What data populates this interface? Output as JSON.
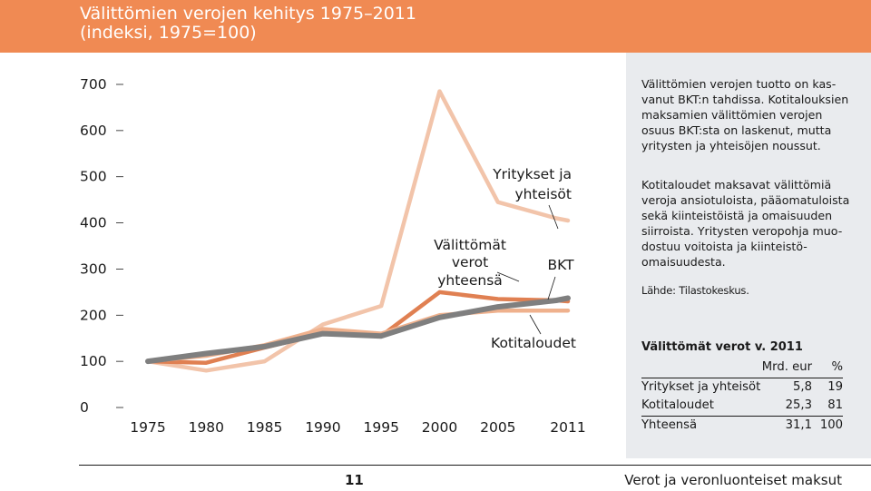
{
  "header": {
    "title_line1": "Välittömien verojen kehitys 1975–2011",
    "title_line2": "(indeksi, 1975=100)"
  },
  "chart_data": {
    "type": "line",
    "title": "Välittömien verojen kehitys 1975–2011 (indeksi, 1975=100)",
    "x": [
      1975,
      1980,
      1985,
      1990,
      1995,
      2000,
      2005,
      2010,
      2011
    ],
    "x_ticks": [
      1975,
      1980,
      1985,
      1990,
      1995,
      2000,
      2005,
      2011
    ],
    "y_ticks": [
      0,
      100,
      200,
      300,
      400,
      500,
      600,
      700
    ],
    "ylim": [
      0,
      700
    ],
    "xlim": [
      1975,
      2011
    ],
    "series": [
      {
        "name": "Yritykset ja yhteisöt",
        "color": "#f2c4aa",
        "x": [
          1975,
          1980,
          1985,
          1990,
          1995,
          2000,
          2005,
          2010,
          2011
        ],
        "values": [
          100,
          80,
          100,
          180,
          220,
          685,
          445,
          410,
          405
        ]
      },
      {
        "name": "Välittömät verot yhteensä",
        "color": "#e08052",
        "x": [
          1975,
          1980,
          1985,
          1990,
          1995,
          2000,
          2005,
          2010,
          2011
        ],
        "values": [
          100,
          97,
          130,
          160,
          155,
          250,
          235,
          232,
          230
        ]
      },
      {
        "name": "Kotitaloudet",
        "color": "#efb18d",
        "x": [
          1975,
          1980,
          1985,
          1990,
          1995,
          2000,
          2005,
          2010,
          2011
        ],
        "values": [
          100,
          112,
          135,
          170,
          160,
          200,
          210,
          210,
          210
        ]
      },
      {
        "name": "BKT",
        "color": "#7f7f7f",
        "x": [
          1975,
          1980,
          1985,
          1990,
          1995,
          2000,
          2005,
          2010,
          2011
        ],
        "values": [
          100,
          117,
          132,
          160,
          155,
          195,
          218,
          232,
          237
        ]
      }
    ],
    "annotations": [
      "Yritykset ja yhteisöt",
      "Välittömät verot yhteensä",
      "BKT",
      "Kotitaloudet"
    ]
  },
  "labels": {
    "yritykset_1": "Yritykset ja",
    "yritykset_2": "yhteisöt",
    "valittomat_1": "Välittömät",
    "valittomat_2": "verot",
    "valittomat_3": "yhteensä",
    "bkt": "BKT",
    "kotitaloudet": "Kotitaloudet"
  },
  "panel": {
    "para1": [
      "Välittömien verojen tuotto on kas-",
      "vanut BKT:n tahdissa. Kotitalouksien",
      "maksamien välittömien verojen",
      "osuus BKT:sta on laskenut, mutta",
      "yritysten ja yhteisöjen noussut."
    ],
    "para2": [
      "Kotitaloudet maksavat välittömiä",
      "veroja ansiotuloista, pääomatuloista",
      "sekä kiinteistöistä ja omaisuuden",
      "siirroista. Yritysten veropohja muo-",
      "dostuu voitoista ja kiinteistö-",
      "omaisuudesta."
    ],
    "source": "Lähde: Tilastokeskus.",
    "table": {
      "title": "Välittömät verot v. 2011",
      "head": [
        "",
        "Mrd. eur",
        "%"
      ],
      "rows": [
        [
          "Yritykset ja yhteisöt",
          "5,8",
          "19"
        ],
        [
          "Kotitaloudet",
          "25,3",
          "81"
        ]
      ],
      "total": [
        "Yhteensä",
        "31,1",
        "100"
      ]
    }
  },
  "footer": {
    "page_number": "11",
    "title": "Verot ja veronluonteiset maksut"
  }
}
